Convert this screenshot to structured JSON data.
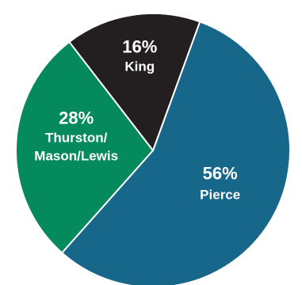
{
  "chart_data": {
    "type": "pie",
    "slices": [
      {
        "label_lines": [
          "Pierce"
        ],
        "percent_text": "56%",
        "value": 56,
        "color": "#17678a"
      },
      {
        "label_lines": [
          "Thurston/",
          "Mason/Lewis"
        ],
        "percent_text": "28%",
        "value": 28,
        "color": "#058a5e"
      },
      {
        "label_lines": [
          "King"
        ],
        "percent_text": "16%",
        "value": 16,
        "color": "#231f20"
      }
    ],
    "start_angle_deg": 20,
    "direction": "clockwise",
    "separator_color": "#ffffff"
  }
}
